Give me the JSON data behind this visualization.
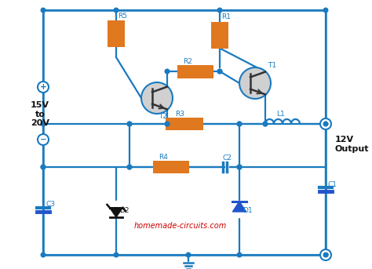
{
  "bg_color": "#ffffff",
  "wire_color": "#1a7abf",
  "component_color": "#e07820",
  "transistor_circle_color": "#d0d0d0",
  "text_color": "#1a7abf",
  "diode_D2_color": "#111111",
  "diode_D1_color": "#2255cc",
  "website_color": "#cc0000",
  "website_text": "homemade-circuits.com",
  "input_label": "15V\nto\n20V",
  "output_label": "12V\nOutput"
}
